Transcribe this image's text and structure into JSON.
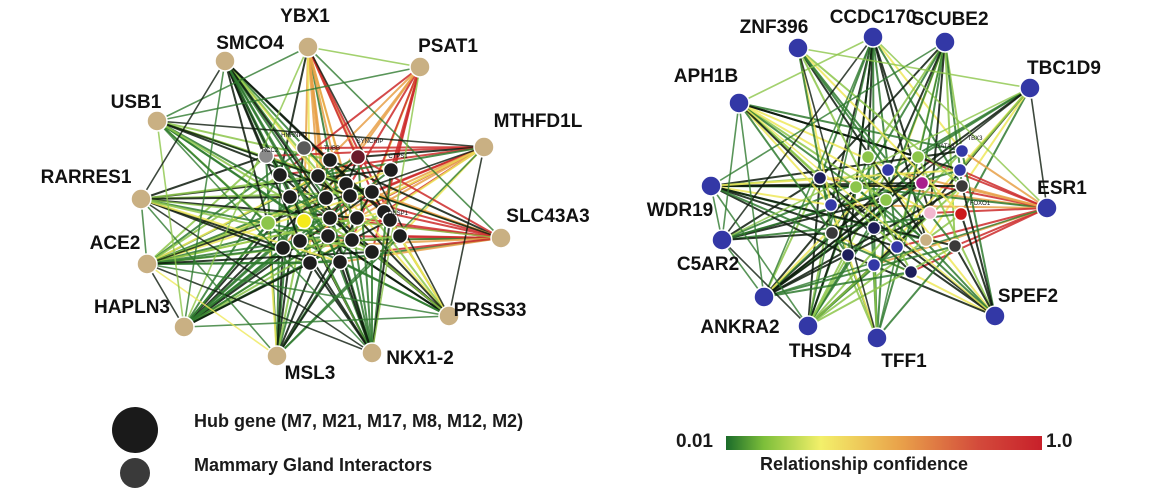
{
  "colors": {
    "hub_tan": "#c9b083",
    "hub_blue": "#3338a6",
    "mgi_dark": "#1e1e1e",
    "edge_dark": "#0c1a0c",
    "edge_green": "#2f7a2f",
    "edge_light_green": "#8cc54a",
    "edge_yellow": "#eee85a",
    "edge_orange": "#e8a048",
    "edge_red": "#cc2a2a"
  },
  "networks": [
    {
      "name": "left-network",
      "hub_color": "tan",
      "hubs": [
        {
          "label": "YBX1"
        },
        {
          "label": "PSAT1"
        },
        {
          "label": "MTHFD1L"
        },
        {
          "label": "SLC43A3"
        },
        {
          "label": "PRSS33"
        },
        {
          "label": "NKX1-2"
        },
        {
          "label": "MSL3"
        },
        {
          "label": "HAPLN3"
        },
        {
          "label": "ACE2"
        },
        {
          "label": "RARRES1"
        },
        {
          "label": "USB1"
        },
        {
          "label": "SMCO4"
        }
      ],
      "inner_labels": [
        "HNRNPD",
        "TUBB",
        "SYNCRIP",
        "CTPS1",
        "DUSP1",
        "RCC2"
      ]
    },
    {
      "name": "right-network",
      "hub_color": "blue",
      "hubs": [
        {
          "label": "CCDC170"
        },
        {
          "label": "SCUBE2"
        },
        {
          "label": "TBC1D9"
        },
        {
          "label": "ESR1"
        },
        {
          "label": "SPEF2"
        },
        {
          "label": "TFF1"
        },
        {
          "label": "THSD4"
        },
        {
          "label": "ANKRA2"
        },
        {
          "label": "C5AR2"
        },
        {
          "label": "WDR19"
        },
        {
          "label": "APH1B"
        },
        {
          "label": "ZNF396"
        }
      ],
      "inner_labels": [
        "FOXO1",
        "TBX3",
        "GATA3"
      ]
    }
  ],
  "legend": {
    "hub_gene": "Hub gene (M7, M21, M17, M8, M12, M2)",
    "mammary": "Mammary Gland Interactors"
  },
  "colorbar": {
    "min_label": "0.01",
    "max_label": "1.0",
    "title": "Relationship confidence",
    "min": 0.01,
    "max": 1.0
  }
}
